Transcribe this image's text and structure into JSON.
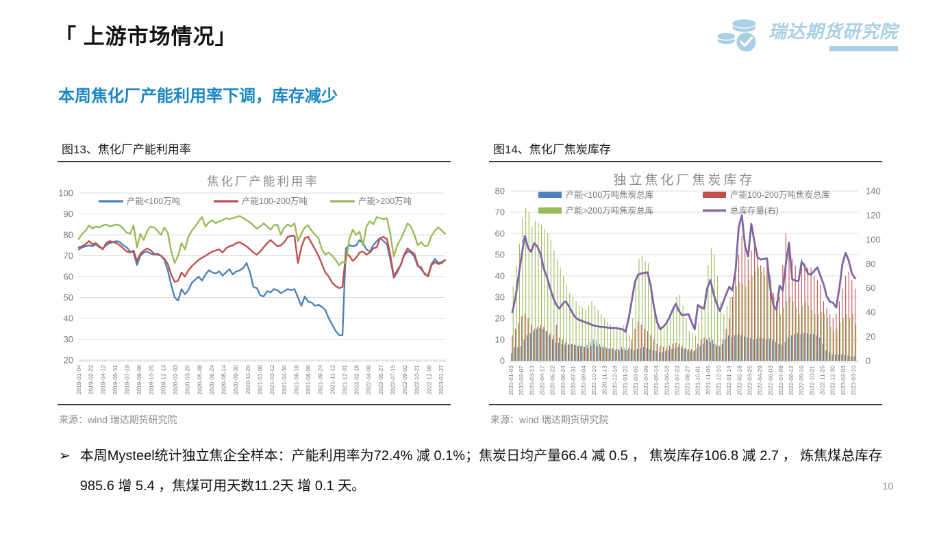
{
  "page": {
    "title": "「 上游市场情况」",
    "subtitle": "本周焦化厂产能利用率下调，库存减少",
    "bullet": "本周Mysteel统计独立焦企全样本：产能利用率为72.4% 减 0.1%；焦炭日均产量66.4 减 0.5 ， 焦炭库存106.8 减 2.7 ， 炼焦煤总库存985.6 增 5.4 ，焦煤可用天数11.2天 增 0.1 天。",
    "bullet_arrow": "➢",
    "page_number": "10"
  },
  "logo": {
    "text": "瑞达期货研究院",
    "color": "#a9cfe2"
  },
  "panels": [
    {
      "header": "图13、焦化厂产能利用率",
      "source": "来源：wind   瑞达期货研究院"
    },
    {
      "header": "图14、焦化厂焦炭库存",
      "source": "来源：wind   瑞达期货研究院"
    }
  ],
  "colors": {
    "blue": "#4F81BD",
    "red": "#C0504D",
    "green": "#9BBB59",
    "purple": "#8064A2",
    "grid": "#DCDCDC",
    "axis_text": "#7a7a7a",
    "chart_title": "#8c8c8c"
  },
  "chart_data": [
    {
      "type": "line",
      "title": "焦化厂产能利用率",
      "ylim": [
        20,
        100
      ],
      "yticks": [
        20,
        30,
        40,
        50,
        60,
        70,
        80,
        90,
        100
      ],
      "grid": true,
      "legend_position": "top-inside",
      "x_tick_labels": [
        "2019-01-04",
        "2019-02-22",
        "2019-04-12",
        "2019-05-31",
        "2019-07-19",
        "2019-09-06",
        "2019-10-25",
        "2019-12-13",
        "2020-02-03",
        "2020-03-20",
        "2020-05-08",
        "2020-06-24",
        "2020-08-14",
        "2020-09-30",
        "2020-11-20",
        "2021-01-08",
        "2021-03-12",
        "2021-04-30",
        "2021-06-18",
        "2021-08-06",
        "2021-09-24",
        "2021-11-12",
        "2021-12-31",
        "2022-02-18",
        "2022-04-08",
        "2022-05-27",
        "2022-07-15",
        "2022-09-02",
        "2022-10-21",
        "2022-12-09",
        "2023-01-27"
      ],
      "series": [
        {
          "name": "产能<100万吨",
          "color": "#4F81BD",
          "values": [
            73,
            74,
            74.5,
            75,
            74.5,
            75.5,
            74,
            73.5,
            75,
            76,
            76.5,
            77,
            76.5,
            75,
            74,
            72,
            71.5,
            65.5,
            70,
            71.5,
            72,
            71,
            70.5,
            71,
            70,
            68,
            63,
            56,
            50,
            48.5,
            54,
            51.5,
            53.5,
            57,
            58.5,
            60,
            58,
            61,
            63,
            62,
            61.5,
            62.5,
            60.5,
            62,
            63.5,
            61,
            62.5,
            63,
            64,
            66.5,
            62,
            55,
            54.5,
            51,
            50.5,
            53,
            52.5,
            54,
            53.5,
            52,
            53,
            54,
            53.5,
            54,
            50,
            46,
            50.5,
            48,
            47.5,
            46,
            46.5,
            45.5,
            44,
            40,
            37,
            34,
            32,
            31.8,
            73.5,
            75,
            74.5,
            75,
            77.5,
            76,
            73,
            72,
            75,
            77,
            78.5,
            77,
            75.5,
            68,
            59.5,
            62,
            65.5,
            70,
            72,
            71.5,
            69.5,
            65,
            64.5,
            61,
            60.5,
            66,
            68.5,
            66.5,
            67,
            68
          ]
        },
        {
          "name": "产能100-200万吨",
          "color": "#C0504D",
          "values": [
            74,
            74.5,
            75.5,
            77,
            75.5,
            76,
            74.5,
            73,
            76,
            77,
            76.5,
            76,
            75,
            73.5,
            72,
            71.5,
            72.5,
            67.5,
            71,
            72.5,
            73.5,
            72.5,
            71,
            70.5,
            70,
            68.5,
            66,
            61,
            57.5,
            58,
            62,
            60,
            63,
            65,
            66.5,
            68,
            69,
            70,
            71,
            72,
            72.5,
            73,
            71.5,
            73.5,
            74.5,
            75,
            76,
            76.5,
            75.5,
            74.5,
            73,
            71.5,
            70.5,
            72,
            74,
            76,
            77.5,
            76,
            74.5,
            75,
            76.5,
            79,
            79.5,
            79.5,
            66.5,
            74,
            78.5,
            79,
            76,
            73,
            70,
            66,
            62,
            60,
            57,
            55.5,
            54.5,
            55,
            71,
            70,
            67.5,
            69,
            71.5,
            72,
            70.5,
            71.5,
            73.5,
            74,
            78.5,
            79,
            78,
            70,
            60,
            63,
            65.5,
            70.5,
            73.5,
            72,
            71,
            65.5,
            63.5,
            61.5,
            60,
            65.5,
            67,
            66,
            66.5,
            68
          ]
        },
        {
          "name": "产能>200万吨",
          "color": "#9BBB59",
          "values": [
            78,
            80.5,
            82,
            84.5,
            83,
            84,
            83.5,
            84.5,
            85,
            84,
            84.5,
            85,
            84.5,
            83,
            81,
            80.5,
            84.5,
            74,
            80.5,
            77.5,
            82,
            84,
            83.5,
            82,
            80,
            83.5,
            81,
            72,
            66.5,
            70,
            76,
            73,
            79,
            82,
            84,
            86.5,
            88.5,
            84,
            86,
            87,
            85.5,
            86.5,
            87,
            88,
            87.5,
            88,
            88.5,
            89,
            88,
            87,
            86,
            84.5,
            83,
            84,
            85.5,
            84,
            82.5,
            84.5,
            85,
            80,
            83.5,
            85,
            84,
            85.5,
            77,
            80.5,
            83.5,
            84.5,
            82,
            80,
            78.5,
            73,
            70.5,
            71.5,
            70,
            68,
            65.5,
            67,
            66.5,
            78,
            82.5,
            80,
            81.5,
            75,
            84,
            86.5,
            85,
            88.5,
            88,
            87.5,
            88,
            80,
            69.5,
            75,
            78,
            81.5,
            85.5,
            84,
            80,
            75,
            76.5,
            74.5,
            75,
            79.5,
            82,
            83.5,
            82,
            80.5
          ]
        }
      ]
    },
    {
      "type": "bar+line",
      "title": "独立焦化厂焦炭库存",
      "ylim_left": [
        0,
        80
      ],
      "ylim_right": [
        0,
        140
      ],
      "yticks_left": [
        0,
        10,
        20,
        30,
        40,
        50,
        60,
        70,
        80
      ],
      "yticks_right": [
        0,
        20,
        40,
        60,
        80,
        100,
        120,
        140
      ],
      "grid": true,
      "legend_position": "top-inside-two-columns",
      "x_tick_labels": [
        "2020-01-03",
        "2020-02-07",
        "2020-03-13",
        "2020-04-17",
        "2020-05-22",
        "2020-06-24",
        "2020-07-31",
        "2020-09-04",
        "2020-10-10",
        "2020-11-13",
        "2020-12-18",
        "2021-01-22",
        "2021-03-05",
        "2021-04-09",
        "2021-05-14",
        "2021-06-18",
        "2021-07-23",
        "2021-08-27",
        "2021-10-01",
        "2021-11-05",
        "2021-12-10",
        "2022-01-14",
        "2022-02-18",
        "2022-03-25",
        "2022-04-29",
        "2022-06-03",
        "2022-07-08",
        "2022-08-12",
        "2022-09-16",
        "2022-10-21",
        "2022-11-25",
        "2022-12-30",
        "2023-02-03",
        "2023-03-10"
      ],
      "bar_series": [
        {
          "name": "产能<100万吨焦炭总库",
          "color": "#4F81BD",
          "values": [
            3.5,
            6.5,
            6.5,
            7,
            10,
            12,
            13,
            14,
            15,
            15.5,
            15,
            14,
            12,
            10,
            9,
            8.5,
            8,
            7.5,
            7.5,
            8,
            7.5,
            7,
            7,
            6.5,
            7.5,
            9,
            10,
            9.5,
            8,
            7,
            6.5,
            6,
            5.5,
            5,
            5.5,
            6.5,
            6,
            5,
            5.5,
            5,
            5.5,
            6,
            6.5,
            6,
            5.5,
            5,
            4.5,
            4,
            4,
            4.5,
            5,
            5.5,
            6,
            6.5,
            6,
            5.5,
            5,
            4.5,
            4.5,
            6,
            7,
            8,
            10,
            11,
            10,
            8,
            7,
            8,
            10,
            12,
            11,
            12,
            12.5,
            12,
            11.5,
            11,
            10.5,
            10,
            10.5,
            11,
            10.5,
            10,
            10.5,
            10,
            9,
            8,
            7.5,
            9,
            11,
            12,
            12.5,
            13,
            12.5,
            13,
            13,
            12.5,
            12.5,
            12,
            11,
            8,
            5,
            4,
            3,
            3,
            3,
            3,
            3,
            2.5,
            2,
            2
          ]
        },
        {
          "name": "产能100-200万吨焦炭总库",
          "color": "#C0504D",
          "values": [
            12,
            15,
            18,
            21,
            22,
            20,
            17,
            15,
            16,
            17,
            16,
            14,
            13,
            12,
            17,
            11,
            10,
            9,
            8,
            8,
            7.5,
            7,
            7,
            6.5,
            6,
            7,
            8,
            7,
            6.5,
            6,
            6,
            5.5,
            6,
            5.5,
            5,
            5.5,
            5,
            6,
            10,
            15,
            18.5,
            17,
            15,
            14,
            12,
            10,
            8,
            7,
            6.5,
            6,
            7,
            8,
            8.5,
            8,
            7,
            6,
            5.5,
            5.5,
            5,
            8,
            10,
            11,
            10,
            9,
            8,
            7,
            7,
            10,
            15,
            20,
            30,
            40,
            50,
            59,
            55,
            48,
            52,
            55,
            50,
            45,
            44,
            48,
            40,
            32,
            28,
            30,
            45,
            60,
            55,
            48,
            45,
            40,
            48,
            46,
            44,
            44,
            40,
            38,
            36,
            28,
            25,
            22,
            20,
            22,
            28,
            34,
            40,
            42,
            38,
            34
          ]
        },
        {
          "name": "产能>200万吨焦炭总库",
          "color": "#9BBB59",
          "values": [
            35,
            45,
            55,
            67,
            72,
            70,
            63,
            66,
            65,
            64,
            62,
            60,
            57,
            52,
            48,
            44,
            40,
            36,
            32,
            30,
            28,
            26,
            25,
            24,
            26,
            28,
            26,
            24,
            22,
            20,
            18,
            17,
            16,
            15,
            16,
            17,
            15,
            12,
            20,
            38,
            48,
            49.5,
            47,
            46,
            35,
            25,
            18,
            16,
            15,
            17,
            20,
            25,
            30,
            31,
            26,
            20,
            14,
            13,
            12,
            18,
            26,
            31,
            45,
            53,
            50,
            40,
            28,
            22,
            26,
            30,
            33,
            35,
            37,
            36,
            35,
            38,
            40,
            42,
            44,
            42,
            40,
            42,
            38,
            30,
            25,
            22,
            25,
            28,
            30,
            28,
            25,
            22,
            26,
            28,
            26,
            24,
            22,
            22,
            23,
            22,
            20,
            16,
            14,
            15,
            18,
            20,
            22,
            20,
            22,
            17
          ]
        }
      ],
      "line_series": {
        "name": "总库存量(右)",
        "color": "#8064A2",
        "axis": "right",
        "values": [
          40,
          52,
          70,
          88,
          103,
          93,
          90,
          97,
          94,
          88,
          76,
          69,
          60,
          52,
          46,
          43,
          47,
          49,
          45,
          40,
          36,
          34,
          33,
          32,
          31,
          30,
          29,
          28.5,
          28,
          28,
          27.5,
          27,
          27,
          27,
          26.5,
          26,
          24,
          35,
          50,
          65,
          71,
          72,
          72.5,
          73,
          62,
          45,
          32,
          26,
          28,
          31,
          36,
          42,
          47,
          41,
          37.5,
          38,
          38.5,
          32,
          26,
          46,
          44,
          43,
          60,
          66.6,
          55,
          47,
          41,
          48,
          55,
          61,
          58,
          75,
          110,
          120,
          95,
          86,
          113,
          98,
          85,
          83.5,
          84,
          84.4,
          60,
          46,
          42,
          62,
          58,
          80,
          97.5,
          67.5,
          66,
          65.6,
          81.6,
          78,
          72,
          71,
          74,
          77,
          70,
          63,
          53,
          48.8,
          47.8,
          44,
          60,
          80,
          89,
          82.6,
          72,
          68
        ]
      }
    }
  ]
}
